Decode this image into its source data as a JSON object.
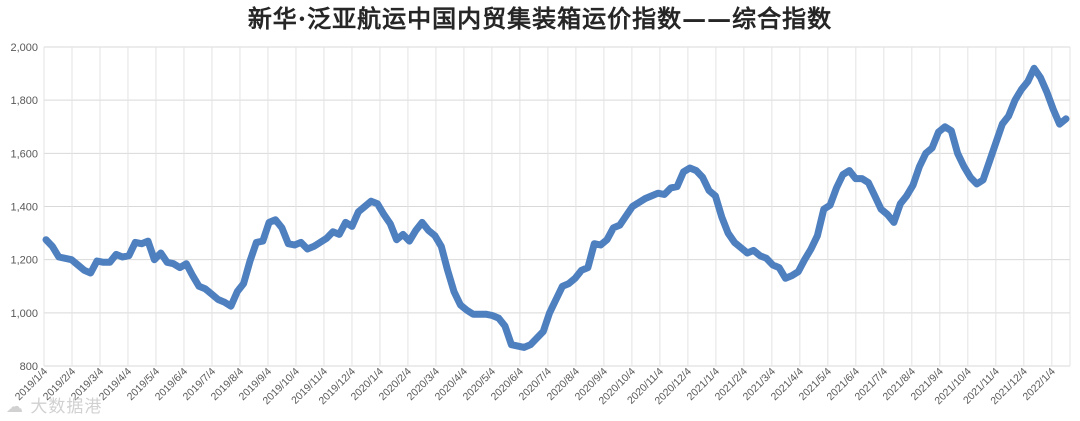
{
  "chart_data": {
    "type": "line",
    "title": "新华·泛亚航运中国内贸集装箱运价指数——综合指数",
    "xlabel": "",
    "ylabel": "",
    "ylim": [
      800,
      2000
    ],
    "yticks": [
      "800",
      "1,000",
      "1,200",
      "1,400",
      "1,600",
      "1,800",
      "2,000"
    ],
    "grid": true,
    "legend": "none",
    "line_color": "#4e7fbf",
    "x_tick_labels": [
      "2019/1/4",
      "2019/2/4",
      "2019/3/4",
      "2019/4/4",
      "2019/5/4",
      "2019/6/4",
      "2019/7/4",
      "2019/8/4",
      "2019/9/4",
      "2019/10/4",
      "2019/11/4",
      "2019/12/4",
      "2020/1/4",
      "2020/2/4",
      "2020/3/4",
      "2020/4/4",
      "2020/5/4",
      "2020/6/4",
      "2020/7/4",
      "2020/8/4",
      "2020/9/4",
      "2020/10/4",
      "2020/11/4",
      "2020/12/4",
      "2021/1/4",
      "2021/2/4",
      "2021/3/4",
      "2021/4/4",
      "2021/5/4",
      "2021/6/4",
      "2021/7/4",
      "2021/8/4",
      "2021/9/4",
      "2021/10/4",
      "2021/11/4",
      "2021/12/4",
      "2022/1/4"
    ],
    "series": [
      {
        "values": [
          1275,
          1250,
          1210,
          1205,
          1200,
          1180,
          1160,
          1150,
          1195,
          1190,
          1190,
          1220,
          1210,
          1215,
          1265,
          1260,
          1270,
          1200,
          1225,
          1190,
          1185,
          1170,
          1185,
          1140,
          1100,
          1090,
          1070,
          1050,
          1040,
          1025,
          1080,
          1110,
          1195,
          1265,
          1270,
          1340,
          1350,
          1320,
          1260,
          1255,
          1265,
          1240,
          1250,
          1265,
          1280,
          1305,
          1295,
          1340,
          1325,
          1380,
          1400,
          1420,
          1410,
          1370,
          1335,
          1275,
          1295,
          1270,
          1310,
          1340,
          1310,
          1290,
          1250,
          1160,
          1080,
          1030,
          1010,
          995,
          995,
          995,
          990,
          980,
          950,
          880,
          875,
          870,
          880,
          905,
          930,
          1000,
          1050,
          1100,
          1110,
          1130,
          1160,
          1170,
          1260,
          1255,
          1275,
          1320,
          1330,
          1365,
          1400,
          1415,
          1430,
          1440,
          1450,
          1445,
          1470,
          1475,
          1530,
          1545,
          1535,
          1510,
          1460,
          1440,
          1360,
          1300,
          1265,
          1245,
          1225,
          1235,
          1215,
          1205,
          1180,
          1170,
          1130,
          1140,
          1155,
          1200,
          1240,
          1290,
          1390,
          1405,
          1470,
          1520,
          1535,
          1505,
          1505,
          1490,
          1440,
          1390,
          1370,
          1340,
          1410,
          1440,
          1480,
          1550,
          1600,
          1620,
          1680,
          1700,
          1685,
          1600,
          1550,
          1510,
          1485,
          1500,
          1570,
          1640,
          1710,
          1740,
          1800,
          1840,
          1870,
          1920,
          1885,
          1830,
          1765,
          1710,
          1730
        ]
      }
    ]
  },
  "watermark": "☁ 大数据港"
}
